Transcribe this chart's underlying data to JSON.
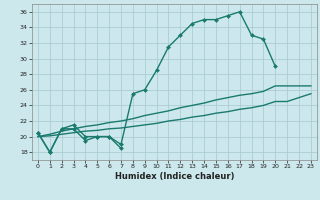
{
  "xlabel": "Humidex (Indice chaleur)",
  "bg_color": "#cce8ec",
  "line_color": "#1a7a6e",
  "grid_color": "#aacdd4",
  "xlim": [
    -0.5,
    23.5
  ],
  "ylim": [
    17,
    37
  ],
  "yticks": [
    18,
    20,
    22,
    24,
    26,
    28,
    30,
    32,
    34,
    36
  ],
  "xticks": [
    0,
    1,
    2,
    3,
    4,
    5,
    6,
    7,
    8,
    9,
    10,
    11,
    12,
    13,
    14,
    15,
    16,
    17,
    18,
    19,
    20,
    21,
    22,
    23
  ],
  "series": [
    {
      "x": [
        0,
        1,
        2,
        3,
        4,
        5,
        6,
        7
      ],
      "y": [
        20.5,
        18,
        21,
        21,
        19.5,
        20,
        20,
        18.5
      ],
      "marker": "D",
      "markersize": 2.0,
      "linewidth": 1.0
    },
    {
      "x": [
        0,
        1,
        2,
        3,
        4,
        5,
        6,
        7,
        8,
        9,
        10,
        11,
        12,
        13,
        14,
        15,
        16,
        17,
        18,
        19,
        20
      ],
      "y": [
        20.5,
        18,
        21,
        21.5,
        20,
        20,
        20,
        19,
        25.5,
        26,
        28.5,
        31.5,
        33,
        34.5,
        35,
        35,
        35.5,
        36,
        33,
        32.5,
        29
      ],
      "marker": "D",
      "markersize": 2.0,
      "linewidth": 1.0
    },
    {
      "x": [
        0,
        1,
        2,
        3,
        4,
        5,
        6,
        7,
        8,
        9,
        10,
        11,
        12,
        13,
        14,
        15,
        16,
        17,
        18,
        19,
        20,
        21,
        22,
        23
      ],
      "y": [
        20.0,
        20.3,
        20.7,
        21.0,
        21.3,
        21.5,
        21.8,
        22.0,
        22.3,
        22.7,
        23.0,
        23.3,
        23.7,
        24.0,
        24.3,
        24.7,
        25.0,
        25.3,
        25.5,
        25.8,
        26.5,
        26.5,
        26.5,
        26.5
      ],
      "marker": null,
      "markersize": 0,
      "linewidth": 1.0
    },
    {
      "x": [
        0,
        1,
        2,
        3,
        4,
        5,
        6,
        7,
        8,
        9,
        10,
        11,
        12,
        13,
        14,
        15,
        16,
        17,
        18,
        19,
        20,
        21,
        22,
        23
      ],
      "y": [
        20.0,
        20.1,
        20.3,
        20.5,
        20.7,
        20.8,
        21.0,
        21.1,
        21.3,
        21.5,
        21.7,
        22.0,
        22.2,
        22.5,
        22.7,
        23.0,
        23.2,
        23.5,
        23.7,
        24.0,
        24.5,
        24.5,
        25.0,
        25.5
      ],
      "marker": null,
      "markersize": 0,
      "linewidth": 1.0
    }
  ]
}
